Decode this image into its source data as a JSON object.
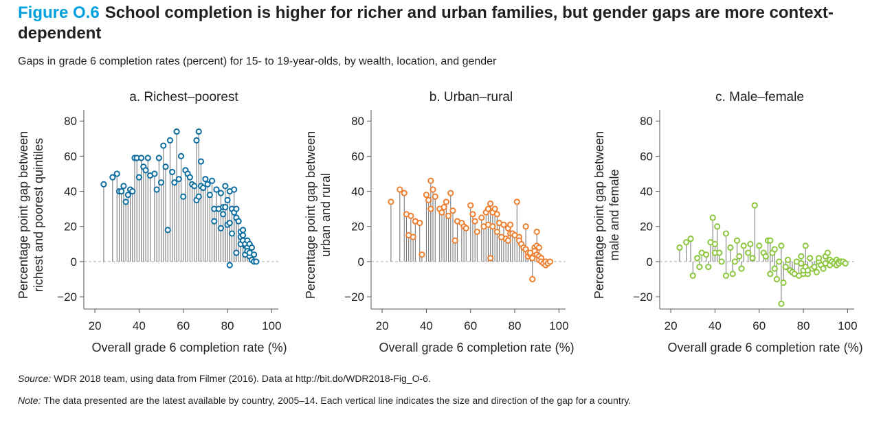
{
  "figure": {
    "label": "Figure O.6",
    "title": "School completion is higher for richer and urban families, but gender gaps are more context-dependent",
    "subtitle": "Gaps in grade 6 completion rates (percent) for 15- to 19-year-olds, by wealth, location, and gender"
  },
  "source": {
    "lead": "Source:",
    "text": "WDR 2018 team, using data from Filmer (2016). Data at http://bit.do/WDR2018-Fig_O-6."
  },
  "note": {
    "lead": "Note:",
    "text": "The data presented are the latest available by country, 2005–14. Each vertical line indicates the size and direction of the gap for a country."
  },
  "chart_data": [
    {
      "type": "scatter",
      "title": "a. Richest–poorest",
      "xlabel": "Overall grade 6 completion rate (%)",
      "ylabel": [
        "Percentage point gap between",
        "richest and poorest quintiles"
      ],
      "xlim": [
        15,
        103
      ],
      "ylim": [
        -27,
        84
      ],
      "xticks": [
        20,
        40,
        60,
        80,
        100
      ],
      "yticks": [
        80,
        60,
        40,
        20,
        0,
        -20
      ],
      "ytick_labels": [
        "80",
        "60",
        "40",
        "20",
        "0",
        "−20"
      ],
      "color": "#0f6e9f",
      "points": [
        [
          24,
          44
        ],
        [
          28,
          48
        ],
        [
          30,
          50
        ],
        [
          31,
          40
        ],
        [
          32,
          40
        ],
        [
          33,
          43
        ],
        [
          34,
          34
        ],
        [
          35,
          38
        ],
        [
          36,
          41
        ],
        [
          37,
          40
        ],
        [
          38,
          59
        ],
        [
          39,
          59
        ],
        [
          40,
          48
        ],
        [
          41,
          59
        ],
        [
          42,
          54
        ],
        [
          43,
          52
        ],
        [
          44,
          59
        ],
        [
          45,
          49
        ],
        [
          47,
          50
        ],
        [
          48,
          41
        ],
        [
          49,
          59
        ],
        [
          50,
          45
        ],
        [
          51,
          66
        ],
        [
          52,
          54
        ],
        [
          53,
          18
        ],
        [
          54,
          69
        ],
        [
          55,
          51
        ],
        [
          56,
          45
        ],
        [
          57,
          74
        ],
        [
          58,
          47
        ],
        [
          59,
          60
        ],
        [
          60,
          37
        ],
        [
          61,
          52
        ],
        [
          62,
          50
        ],
        [
          63,
          48
        ],
        [
          64,
          44
        ],
        [
          65,
          43
        ],
        [
          66,
          35
        ],
        [
          66,
          69
        ],
        [
          67,
          74
        ],
        [
          67,
          37
        ],
        [
          68,
          57
        ],
        [
          68,
          43
        ],
        [
          69,
          42
        ],
        [
          70,
          47
        ],
        [
          71,
          44
        ],
        [
          72,
          38
        ],
        [
          73,
          46
        ],
        [
          74,
          23
        ],
        [
          74,
          30
        ],
        [
          75,
          41
        ],
        [
          75,
          41
        ],
        [
          76,
          30
        ],
        [
          77,
          19
        ],
        [
          77,
          39
        ],
        [
          78,
          27
        ],
        [
          78,
          31
        ],
        [
          79,
          43
        ],
        [
          79,
          31
        ],
        [
          80,
          21
        ],
        [
          80,
          35
        ],
        [
          81,
          40
        ],
        [
          81,
          22
        ],
        [
          82,
          30
        ],
        [
          82,
          16
        ],
        [
          83,
          28
        ],
        [
          84,
          25
        ],
        [
          84,
          5
        ],
        [
          85,
          23
        ],
        [
          86,
          14
        ],
        [
          86,
          17
        ],
        [
          86,
          10
        ],
        [
          87,
          12
        ],
        [
          87,
          15
        ],
        [
          87,
          18
        ],
        [
          88,
          9
        ],
        [
          88,
          10
        ],
        [
          88,
          4
        ],
        [
          89,
          12
        ],
        [
          89,
          8
        ],
        [
          89,
          6
        ],
        [
          90,
          10
        ],
        [
          90,
          3
        ],
        [
          90,
          5
        ],
        [
          91,
          8
        ],
        [
          91,
          1
        ],
        [
          92,
          4
        ],
        [
          92,
          0
        ],
        [
          93,
          0
        ],
        [
          81,
          -2
        ],
        [
          83,
          41
        ],
        [
          84,
          30
        ]
      ]
    },
    {
      "type": "scatter",
      "title": "b. Urban–rural",
      "xlabel": "Overall grade 6 completion rate (%)",
      "ylabel": [
        "Percentage point gap between",
        "urban and rural"
      ],
      "xlim": [
        15,
        103
      ],
      "ylim": [
        -27,
        84
      ],
      "xticks": [
        20,
        40,
        60,
        80,
        100
      ],
      "yticks": [
        80,
        60,
        40,
        20,
        0,
        -20
      ],
      "ytick_labels": [
        "80",
        "60",
        "40",
        "20",
        "0",
        "−20"
      ],
      "color": "#ef7f31",
      "points": [
        [
          24,
          34
        ],
        [
          28,
          41
        ],
        [
          30,
          39
        ],
        [
          31,
          27
        ],
        [
          32,
          15
        ],
        [
          33,
          26
        ],
        [
          34,
          14
        ],
        [
          35,
          23
        ],
        [
          37,
          22
        ],
        [
          38,
          4
        ],
        [
          40,
          38
        ],
        [
          41,
          35
        ],
        [
          42,
          46
        ],
        [
          42,
          30
        ],
        [
          43,
          41
        ],
        [
          44,
          37
        ],
        [
          46,
          30
        ],
        [
          47,
          28
        ],
        [
          48,
          31
        ],
        [
          49,
          34
        ],
        [
          50,
          26
        ],
        [
          51,
          39
        ],
        [
          52,
          29
        ],
        [
          53,
          12
        ],
        [
          54,
          23
        ],
        [
          56,
          22
        ],
        [
          57,
          20
        ],
        [
          58,
          19
        ],
        [
          60,
          32
        ],
        [
          61,
          27
        ],
        [
          62,
          23
        ],
        [
          63,
          17
        ],
        [
          65,
          25
        ],
        [
          66,
          20
        ],
        [
          67,
          28
        ],
        [
          68,
          30
        ],
        [
          68,
          21
        ],
        [
          69,
          33
        ],
        [
          69,
          2
        ],
        [
          70,
          28
        ],
        [
          70,
          20
        ],
        [
          71,
          30
        ],
        [
          72,
          27
        ],
        [
          72,
          17
        ],
        [
          73,
          22
        ],
        [
          74,
          14
        ],
        [
          75,
          21
        ],
        [
          76,
          13
        ],
        [
          77,
          12
        ],
        [
          77,
          19
        ],
        [
          78,
          21
        ],
        [
          78,
          16
        ],
        [
          79,
          16
        ],
        [
          80,
          15
        ],
        [
          81,
          34
        ],
        [
          82,
          14
        ],
        [
          82,
          12
        ],
        [
          83,
          10
        ],
        [
          84,
          8
        ],
        [
          85,
          7
        ],
        [
          85,
          20
        ],
        [
          86,
          5
        ],
        [
          86,
          3
        ],
        [
          87,
          4
        ],
        [
          88,
          2
        ],
        [
          88,
          -10
        ],
        [
          89,
          8
        ],
        [
          89,
          6
        ],
        [
          90,
          17
        ],
        [
          90,
          4
        ],
        [
          91,
          3
        ],
        [
          91,
          1
        ],
        [
          92,
          2
        ],
        [
          92,
          0
        ],
        [
          93,
          -1
        ],
        [
          94,
          -2
        ],
        [
          94,
          0
        ],
        [
          95,
          -1
        ],
        [
          96,
          0
        ],
        [
          90,
          9
        ],
        [
          87,
          5
        ],
        [
          91,
          8
        ]
      ]
    },
    {
      "type": "scatter",
      "title": "c. Male–female",
      "xlabel": "Overall grade 6 completion rate (%)",
      "ylabel": [
        "Percentage point gap between",
        "male and female"
      ],
      "xlim": [
        15,
        103
      ],
      "ylim": [
        -27,
        84
      ],
      "xticks": [
        20,
        40,
        60,
        80,
        100
      ],
      "yticks": [
        80,
        60,
        40,
        20,
        0,
        -20
      ],
      "ytick_labels": [
        "80",
        "60",
        "40",
        "20",
        "0",
        "−20"
      ],
      "color": "#8cc63f",
      "points": [
        [
          24,
          8
        ],
        [
          27,
          11
        ],
        [
          29,
          13
        ],
        [
          30,
          -8
        ],
        [
          32,
          2
        ],
        [
          33,
          -3
        ],
        [
          34,
          5
        ],
        [
          36,
          4
        ],
        [
          37,
          -3
        ],
        [
          38,
          11
        ],
        [
          39,
          25
        ],
        [
          40,
          5
        ],
        [
          40,
          10
        ],
        [
          41,
          20
        ],
        [
          42,
          5
        ],
        [
          43,
          0
        ],
        [
          45,
          -8
        ],
        [
          45,
          16
        ],
        [
          47,
          8
        ],
        [
          48,
          -7
        ],
        [
          49,
          0
        ],
        [
          50,
          12
        ],
        [
          51,
          3
        ],
        [
          52,
          -4
        ],
        [
          53,
          9
        ],
        [
          55,
          5
        ],
        [
          56,
          10
        ],
        [
          57,
          2
        ],
        [
          58,
          32
        ],
        [
          60,
          9
        ],
        [
          62,
          5
        ],
        [
          63,
          3
        ],
        [
          64,
          12
        ],
        [
          65,
          -7
        ],
        [
          65,
          12
        ],
        [
          66,
          5
        ],
        [
          67,
          7
        ],
        [
          67,
          -4
        ],
        [
          68,
          -10
        ],
        [
          69,
          0
        ],
        [
          70,
          9
        ],
        [
          70,
          -24
        ],
        [
          71,
          -12
        ],
        [
          72,
          -3
        ],
        [
          73,
          1
        ],
        [
          74,
          -5
        ],
        [
          75,
          -6
        ],
        [
          76,
          -7
        ],
        [
          77,
          0
        ],
        [
          78,
          -8
        ],
        [
          79,
          3
        ],
        [
          80,
          -7
        ],
        [
          80,
          -5
        ],
        [
          81,
          -3
        ],
        [
          81,
          9
        ],
        [
          82,
          -7
        ],
        [
          82,
          -5
        ],
        [
          83,
          2
        ],
        [
          84,
          -4
        ],
        [
          85,
          -3
        ],
        [
          86,
          -6
        ],
        [
          87,
          0
        ],
        [
          88,
          -2
        ],
        [
          89,
          -4
        ],
        [
          90,
          3
        ],
        [
          90,
          -1
        ],
        [
          91,
          5
        ],
        [
          92,
          1
        ],
        [
          92,
          -2
        ],
        [
          93,
          0
        ],
        [
          94,
          -1
        ],
        [
          95,
          1
        ],
        [
          95,
          -2
        ],
        [
          96,
          0
        ],
        [
          96,
          -1
        ],
        [
          97,
          0
        ],
        [
          98,
          0
        ],
        [
          99,
          -1
        ],
        [
          79,
          -1
        ],
        [
          87,
          2
        ]
      ]
    }
  ]
}
